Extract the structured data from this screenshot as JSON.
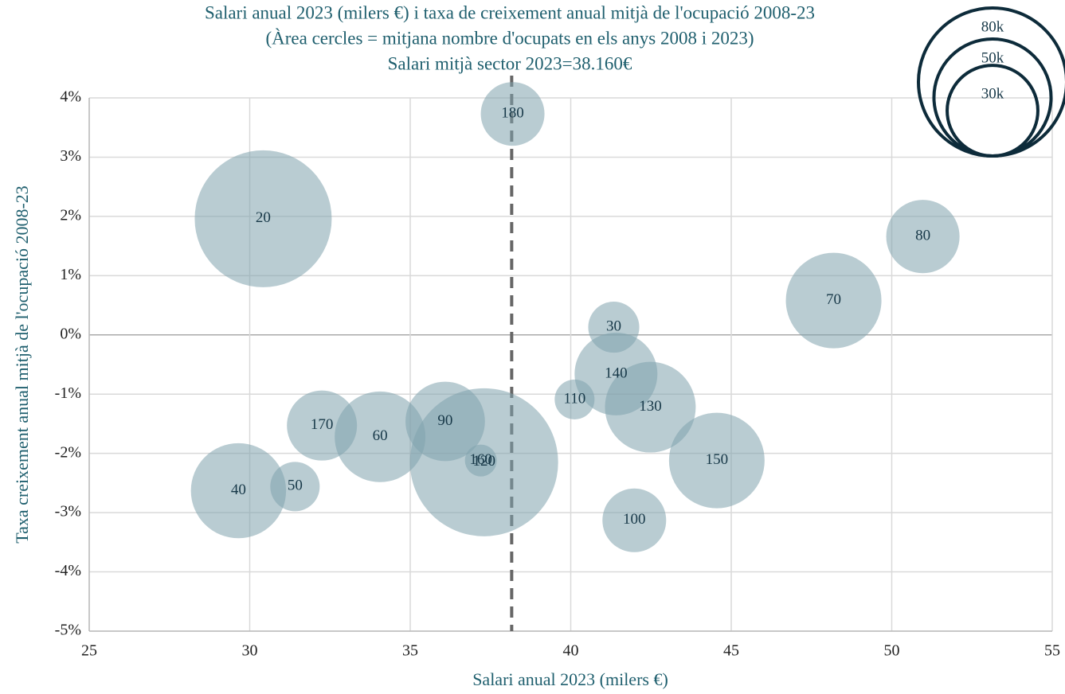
{
  "chart_data": {
    "type": "bubble",
    "title": [
      "Salari anual 2023 (milers €) i taxa de creixement anual mitjà de l'ocupació 2008-23",
      "(Àrea cercles = mitjana nombre d'ocupats en els anys 2008 i 2023)",
      "Salari mitjà sector 2023=38.160€"
    ],
    "x_label": "Salari anual 2023 (milers €)",
    "y_label": "Taxa creixement anual mitjà de l'ocupació 2008-23",
    "categories": [
      "20",
      "180",
      "80",
      "70",
      "30",
      "140",
      "110",
      "130",
      "150",
      "100",
      "120",
      "160",
      "90",
      "60",
      "170",
      "40",
      "50"
    ],
    "x": [
      30.42,
      38.19,
      50.97,
      48.19,
      41.34,
      41.41,
      40.12,
      42.48,
      44.55,
      41.98,
      37.3,
      37.2,
      36.09,
      34.06,
      32.25,
      29.65,
      31.41
    ],
    "values": [
      1.96,
      3.73,
      1.66,
      0.58,
      0.13,
      -0.66,
      -1.09,
      -1.22,
      -2.12,
      -3.13,
      -2.15,
      -2.12,
      -1.46,
      -1.72,
      -1.53,
      -2.63,
      -2.56
    ],
    "sizes": [
      68400,
      14800,
      19600,
      33300,
      9500,
      25000,
      5800,
      30000,
      33300,
      14800,
      80000,
      3700,
      23000,
      30000,
      17900,
      33000,
      8900
    ],
    "color": "#7fa3ad",
    "reference_x": 38.16,
    "size_legend": [
      {
        "value": 80000,
        "label": "80k"
      },
      {
        "value": 50000,
        "label": "50k"
      },
      {
        "value": 30000,
        "label": "30k"
      }
    ],
    "xlim": [
      25,
      55
    ],
    "xticks": [
      25,
      30,
      35,
      40,
      45,
      50,
      55
    ],
    "ylim": [
      -5,
      4
    ],
    "yticks": [
      {
        "value": 4,
        "label": "4%"
      },
      {
        "value": 3,
        "label": "3%"
      },
      {
        "value": 2,
        "label": "2%"
      },
      {
        "value": 1,
        "label": "1%"
      },
      {
        "value": 0,
        "label": "0%"
      },
      {
        "value": -1,
        "label": "-1%"
      },
      {
        "value": -2,
        "label": "-2%"
      },
      {
        "value": -3,
        "label": "-3%"
      },
      {
        "value": -4,
        "label": "-4%"
      },
      {
        "value": -5,
        "label": "-5%"
      }
    ],
    "grid": true
  }
}
